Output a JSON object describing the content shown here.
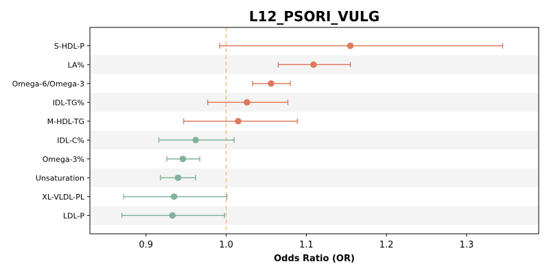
{
  "chart_data": {
    "type": "forest",
    "title": "L12_PSORI_VULG",
    "xlabel": "Odds Ratio (OR)",
    "ylabel": "",
    "xlim": [
      0.83,
      1.39
    ],
    "xticks": [
      "0.9",
      "1.0",
      "1.1",
      "1.2",
      "1.3"
    ],
    "reference_line": 1.0,
    "colors": {
      "positive": "#e07a5f",
      "negative": "#81b29a",
      "reference": "#f2c078",
      "stripe": "#f4f4f4"
    },
    "points": [
      {
        "label": "S-HDL-P",
        "or": 1.155,
        "ci_low": 0.992,
        "ci_high": 1.345
      },
      {
        "label": "LA%",
        "or": 1.109,
        "ci_low": 1.065,
        "ci_high": 1.155
      },
      {
        "label": "Omega-6/Omega-3",
        "or": 1.056,
        "ci_low": 1.033,
        "ci_high": 1.08
      },
      {
        "label": "IDL-TG%",
        "or": 1.026,
        "ci_low": 0.977,
        "ci_high": 1.077
      },
      {
        "label": "M-HDL-TG",
        "or": 1.015,
        "ci_low": 0.947,
        "ci_high": 1.089
      },
      {
        "label": "IDL-C%",
        "or": 0.962,
        "ci_low": 0.916,
        "ci_high": 1.01
      },
      {
        "label": "Omega-3%",
        "or": 0.946,
        "ci_low": 0.926,
        "ci_high": 0.967
      },
      {
        "label": "Unsaturation",
        "or": 0.94,
        "ci_low": 0.918,
        "ci_high": 0.962
      },
      {
        "label": "XL-VLDL-PL",
        "or": 0.935,
        "ci_low": 0.872,
        "ci_high": 1.001
      },
      {
        "label": "LDL-P",
        "or": 0.933,
        "ci_low": 0.87,
        "ci_high": 0.998
      }
    ]
  }
}
